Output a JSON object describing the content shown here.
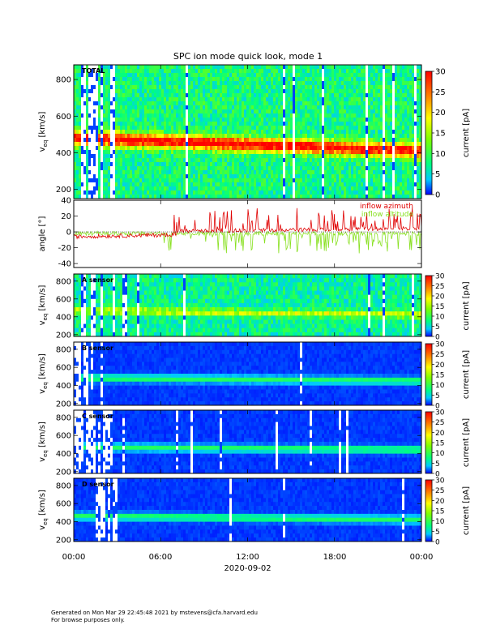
{
  "chart_data": {
    "type": "heatmap",
    "title": "SPC ion mode quick look, mode 1",
    "x_axis": {
      "tick_labels": [
        "00:00",
        "06:00",
        "12:00",
        "18:00",
        "00:00"
      ],
      "tick_hours": [
        0,
        6,
        12,
        18,
        24
      ],
      "date_label": "2020-09-02",
      "range_hours": [
        0,
        24
      ]
    },
    "colormap": "rainbow (blue to red)",
    "colorbar": {
      "label": "current [pA]",
      "range": [
        0,
        30
      ],
      "ticks": [
        "0",
        "5",
        "10",
        "15",
        "20",
        "25",
        "30"
      ]
    },
    "panels": [
      {
        "kind": "spectrogram",
        "tag": "TOTAL",
        "ylabel": "v",
        "ylabel_sub": "eq",
        "yunit": " [km/s]",
        "ylim": [
          150,
          880
        ],
        "yticks": [
          200,
          400,
          600,
          800
        ],
        "background_level": 8,
        "beam_velocity_start": 480,
        "beam_velocity_end": 410,
        "beam_peak": 23
      },
      {
        "kind": "timeseries",
        "ylabel": "angle [°]",
        "ylim": [
          -45,
          40
        ],
        "yticks": [
          -40,
          -20,
          0,
          20,
          40
        ],
        "series": [
          {
            "name": "inflow azimuth",
            "color": "#e00000"
          },
          {
            "name": "inflow altitude",
            "color": "#88e020"
          }
        ]
      },
      {
        "kind": "spectrogram",
        "tag": "A sensor",
        "ylabel": "v",
        "ylabel_sub": "eq",
        "yunit": " [km/s]",
        "ylim": [
          180,
          880
        ],
        "yticks": [
          200,
          400,
          600,
          800
        ],
        "background_level": 7,
        "beam_velocity_start": 470,
        "beam_velocity_end": 420,
        "beam_peak": 10
      },
      {
        "kind": "spectrogram",
        "tag": "B sensor",
        "ylabel": "v",
        "ylabel_sub": "eq",
        "yunit": " [km/s]",
        "ylim": [
          180,
          880
        ],
        "yticks": [
          200,
          400,
          600,
          800
        ],
        "background_level": 1,
        "beam_velocity_start": 480,
        "beam_velocity_end": 450,
        "beam_peak": 8
      },
      {
        "kind": "spectrogram",
        "tag": "C sensor",
        "ylabel": "v",
        "ylabel_sub": "eq",
        "yunit": " [km/s]",
        "ylim": [
          180,
          880
        ],
        "yticks": [
          200,
          400,
          600,
          800
        ],
        "background_level": 1,
        "beam_velocity_start": 470,
        "beam_velocity_end": 440,
        "beam_peak": 8
      },
      {
        "kind": "spectrogram",
        "tag": "D sensor",
        "ylabel": "v",
        "ylabel_sub": "eq",
        "yunit": " [km/s]",
        "ylim": [
          180,
          880
        ],
        "yticks": [
          200,
          400,
          600,
          800
        ],
        "background_level": 1,
        "beam_velocity_start": 460,
        "beam_velocity_end": 420,
        "beam_peak": 8
      }
    ]
  },
  "footer": {
    "line1": "Generated on Mon Mar 29 22:45:48 2021 by mstevens@cfa.harvard.edu",
    "line2": "For browse purposes only."
  }
}
